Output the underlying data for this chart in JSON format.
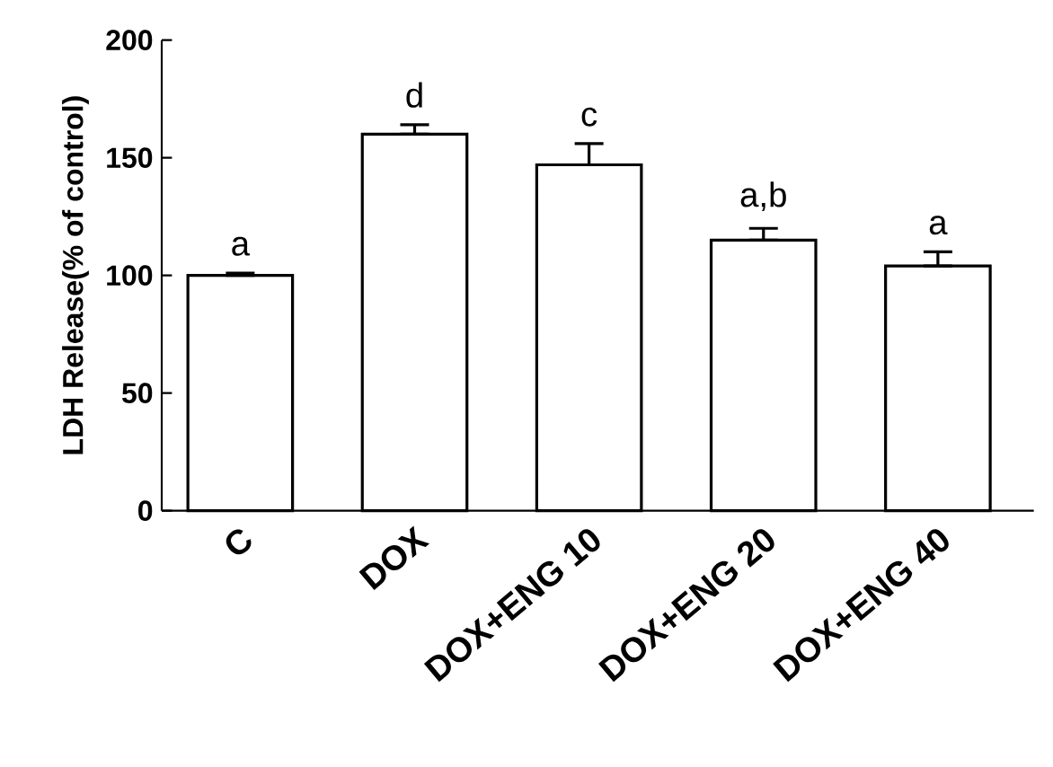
{
  "chart_data": {
    "type": "bar",
    "ylabel": "LDH Release(% of control)",
    "categories": [
      "C",
      "DOX",
      "DOX+ENG 10",
      "DOX+ENG 20",
      "DOX+ENG 40"
    ],
    "values": [
      100,
      160,
      147,
      115,
      104
    ],
    "errors": [
      [
        100,
        101
      ],
      [
        160,
        164
      ],
      [
        147,
        156
      ],
      [
        115,
        120
      ],
      [
        104,
        110
      ]
    ],
    "color": "#ffffff",
    "ylim": [
      0,
      200
    ],
    "yticks": [
      0,
      50,
      100,
      150,
      200
    ],
    "grid": false,
    "annotations": [
      "a",
      "d",
      "c",
      "a,b",
      "a"
    ]
  }
}
